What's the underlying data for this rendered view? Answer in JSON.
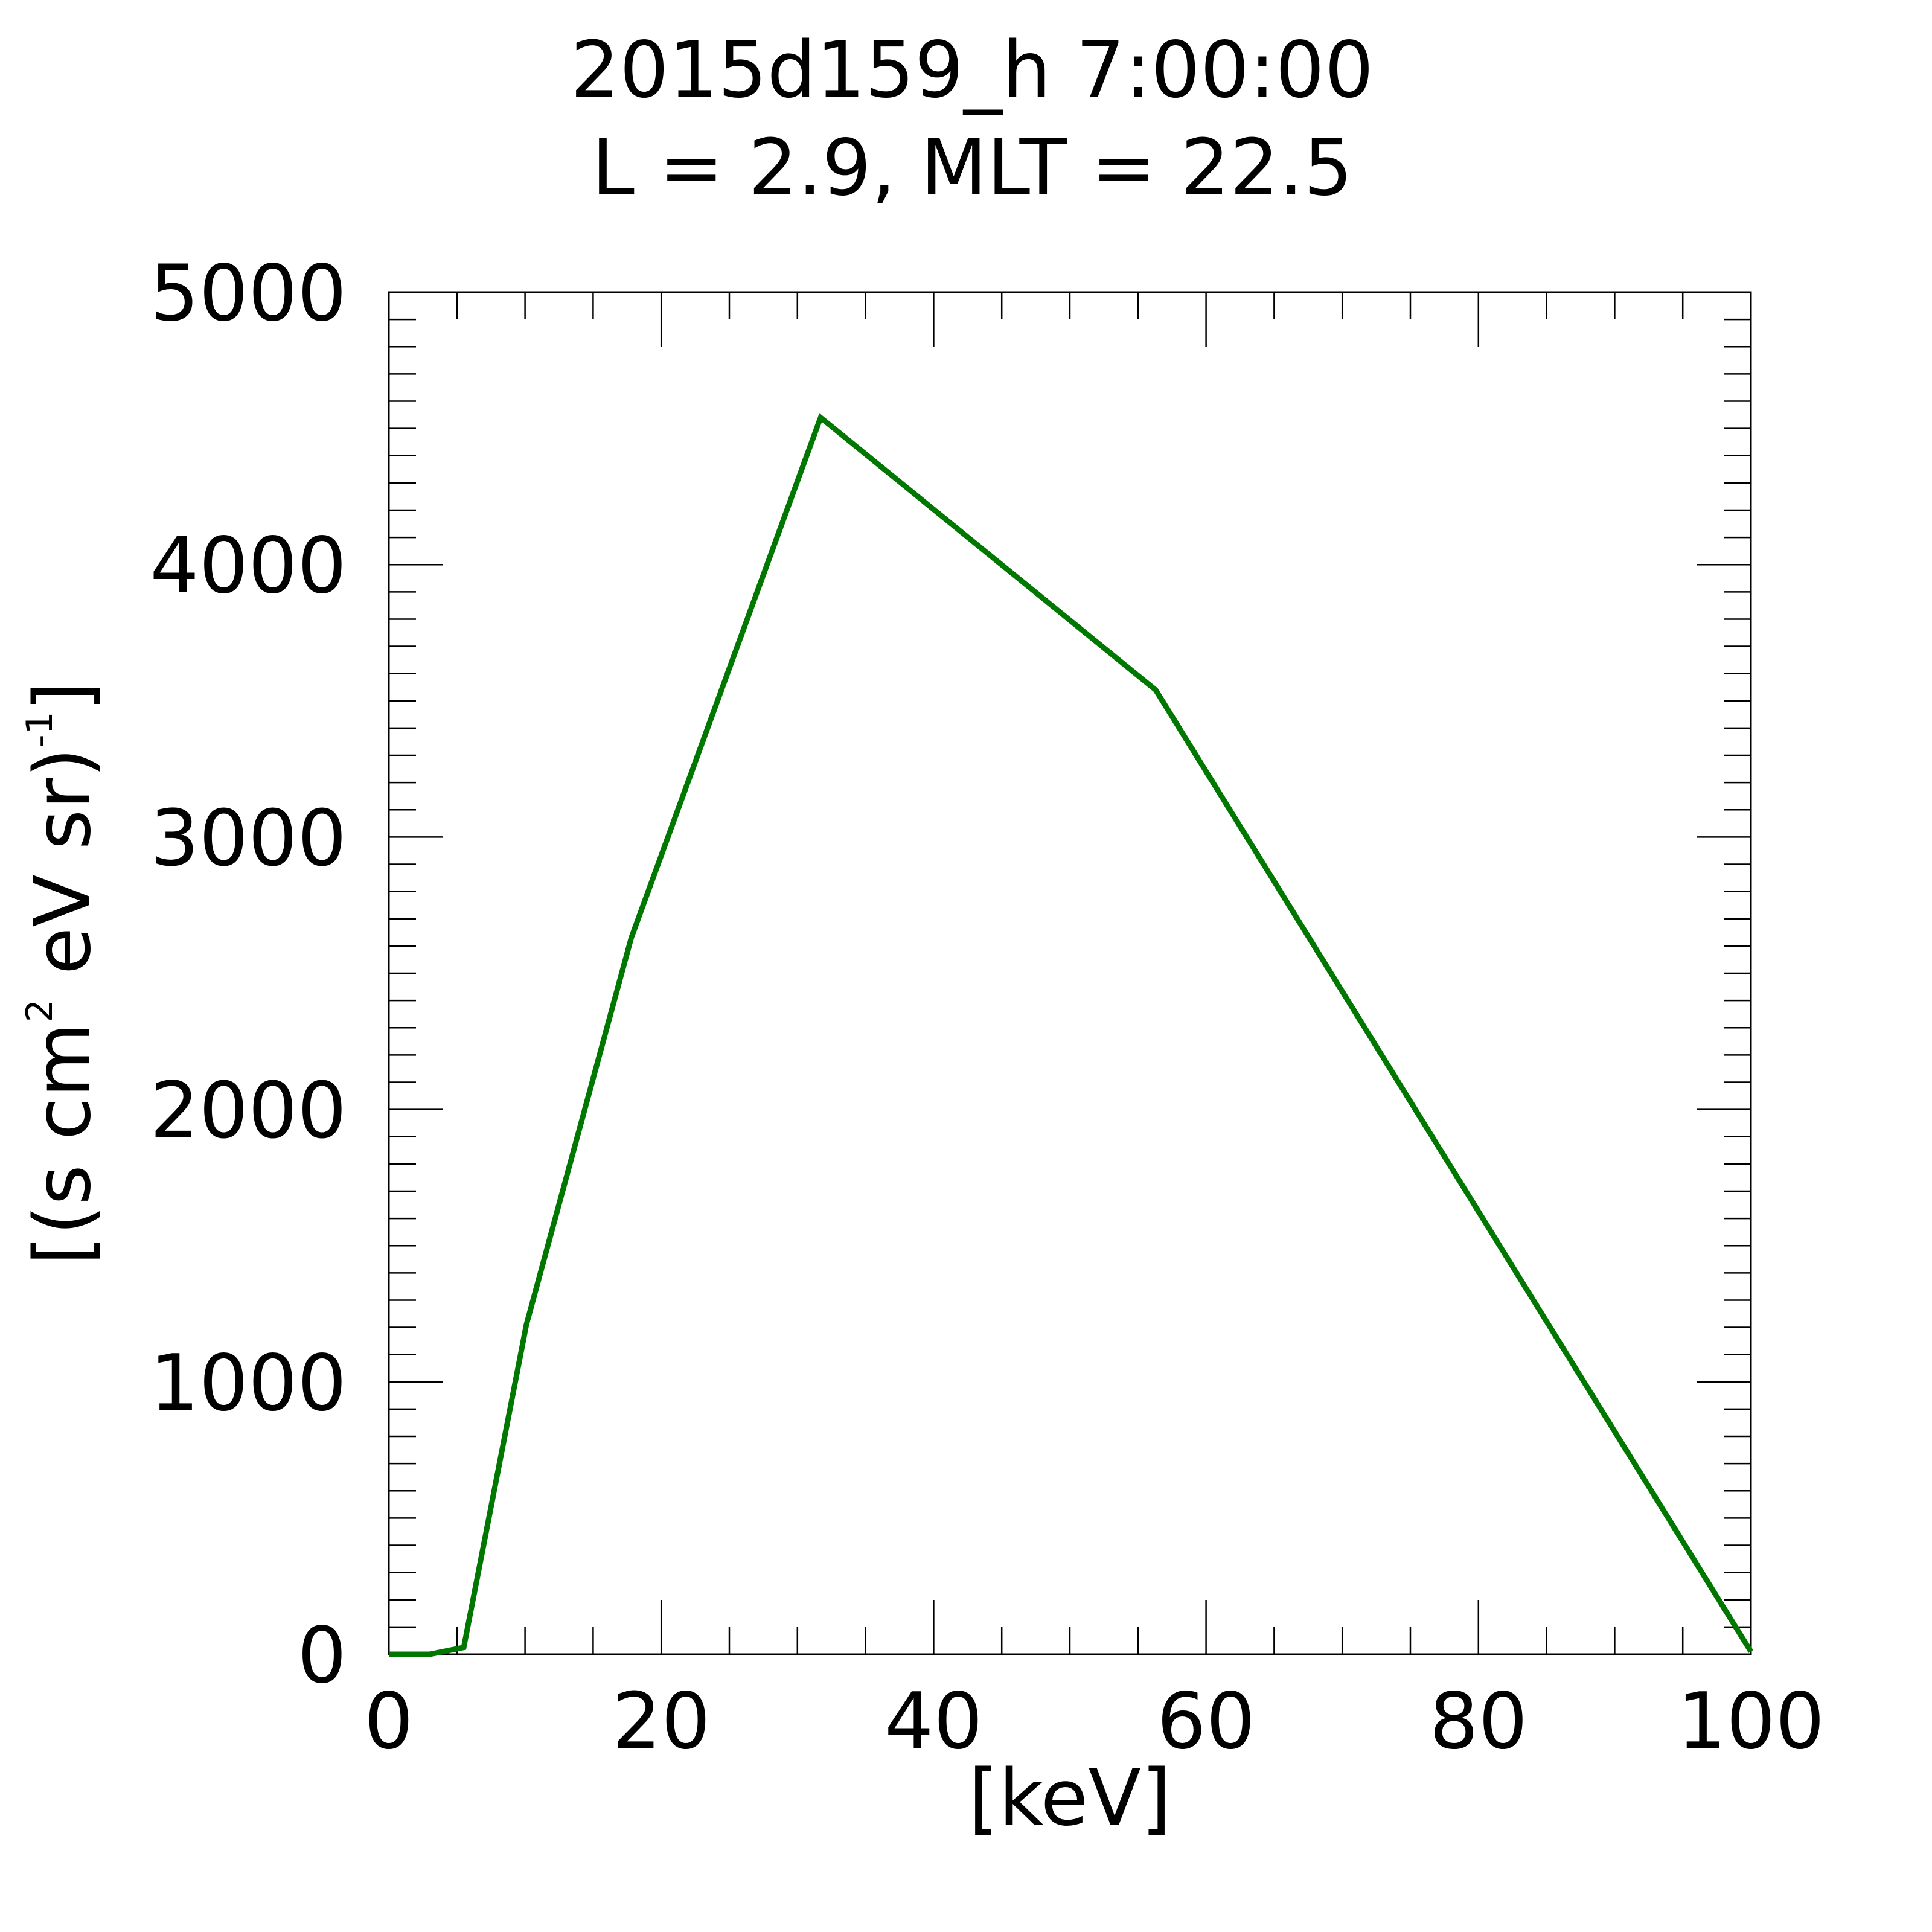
{
  "chart_data": {
    "type": "line",
    "title": [
      "2015d159_h   7:00:00",
      "L = 2.9, MLT = 22.5"
    ],
    "xlabel": "[keV]",
    "ylabel": {
      "part1": "[(s cm",
      "sup1": "2",
      "part2": " eV sr)",
      "sup2": "-1",
      "part3": "]"
    },
    "xlim": [
      0,
      100
    ],
    "ylim": [
      0,
      5000
    ],
    "x_ticks": [
      "0",
      "20",
      "40",
      "60",
      "80",
      "100"
    ],
    "y_ticks": [
      "0",
      "1000",
      "2000",
      "3000",
      "4000",
      "5000"
    ],
    "grid": false,
    "series": [
      {
        "color": "#007700",
        "x": [
          0,
          3.0,
          5.5,
          10.1,
          17.8,
          31.7,
          56.3,
          100
        ],
        "y": [
          0,
          0,
          25,
          1210,
          2630,
          4540,
          3540,
          10
        ]
      }
    ]
  }
}
